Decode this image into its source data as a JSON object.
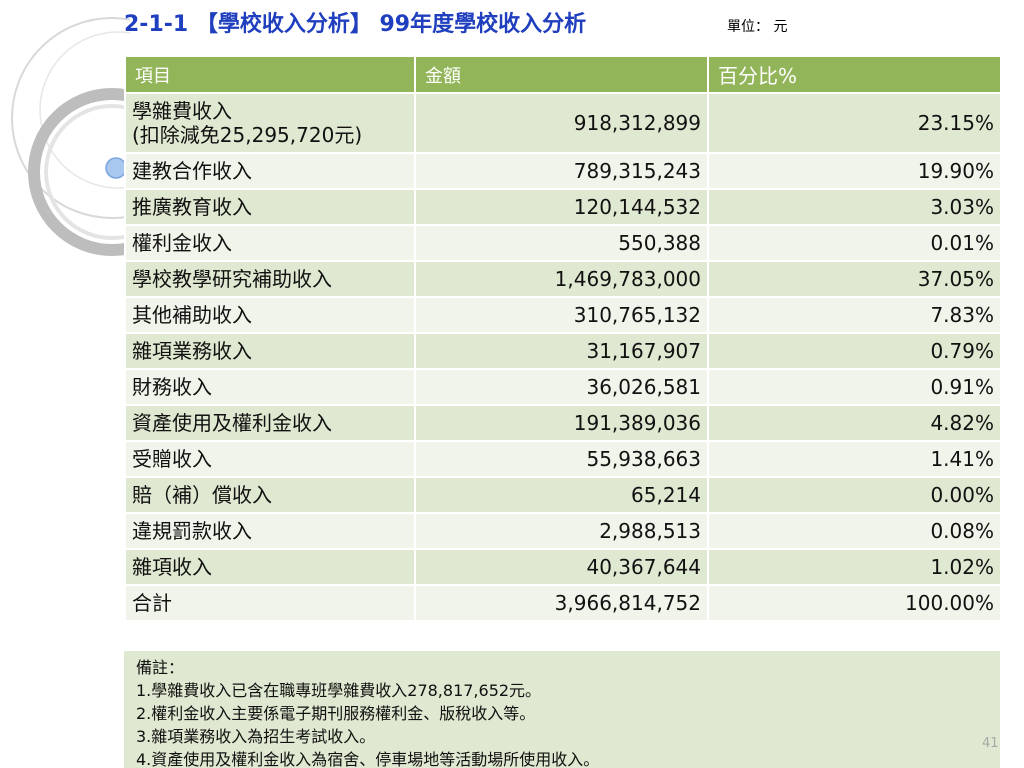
{
  "header": {
    "title": "2-1-1 【學校收入分析】 99年度學校收入分析",
    "unit": "單位： 元"
  },
  "table": {
    "columns": [
      "項目",
      "金額",
      "百分比%"
    ],
    "rows": [
      {
        "item": "學雜費收入",
        "item_sub": "(扣除減免25,295,720元)",
        "amount": "918,312,899",
        "percent": "23.15%"
      },
      {
        "item": "建教合作收入",
        "amount": "789,315,243",
        "percent": "19.90%"
      },
      {
        "item": "推廣教育收入",
        "amount": "120,144,532",
        "percent": "3.03%"
      },
      {
        "item": "權利金收入",
        "amount": "550,388",
        "percent": "0.01%"
      },
      {
        "item": "學校教學研究補助收入",
        "amount": "1,469,783,000",
        "percent": "37.05%"
      },
      {
        "item": "其他補助收入",
        "amount": "310,765,132",
        "percent": "7.83%"
      },
      {
        "item": "雜項業務收入",
        "amount": "31,167,907",
        "percent": "0.79%"
      },
      {
        "item": "財務收入",
        "amount": "36,026,581",
        "percent": "0.91%"
      },
      {
        "item": "資產使用及權利金收入",
        "amount": "191,389,036",
        "percent": "4.82%"
      },
      {
        "item": "受贈收入",
        "amount": "55,938,663",
        "percent": "1.41%"
      },
      {
        "item": "賠（補）償收入",
        "amount": "65,214",
        "percent": "0.00%"
      },
      {
        "item": "違規罰款收入",
        "amount": "2,988,513",
        "percent": "0.08%"
      },
      {
        "item": "雜項收入",
        "amount": "40,367,644",
        "percent": "1.02%"
      },
      {
        "item": "合計",
        "amount": "3,966,814,752",
        "percent": "100.00%"
      }
    ]
  },
  "notes": {
    "heading": "備註：",
    "lines": [
      "1.學雜費收入已含在職專班學雜費收入278,817,652元。",
      "2.權利金收入主要係電子期刊服務權利金、版稅收入等。",
      "3.雜項業務收入為招生考試收入。",
      "4.資產使用及權利金收入為宿舍、停車場地等活動場所使用收入。"
    ]
  },
  "page_number": "41",
  "colors": {
    "title": "#1f3fbf",
    "header_bg": "#93b55a",
    "row_dark": "#dfe8d0",
    "row_light": "#f0f4ea",
    "accent_dot": "#a8c8f0"
  }
}
